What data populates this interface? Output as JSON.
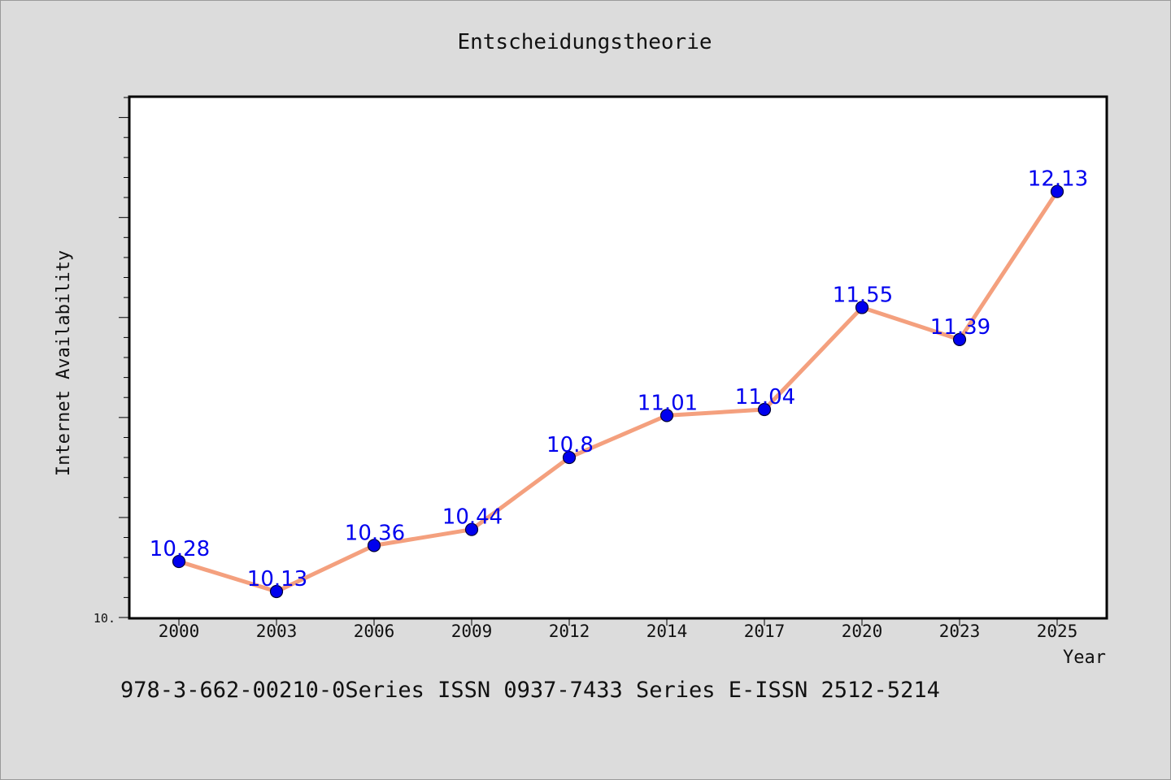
{
  "chart_data": {
    "type": "line",
    "title": "Entscheidungstheorie",
    "xlabel": "Year",
    "ylabel": "Internet Availability",
    "categories": [
      "2000",
      "2003",
      "2006",
      "2009",
      "2012",
      "2014",
      "2017",
      "2020",
      "2023",
      "2025"
    ],
    "series": [
      {
        "values": [
          10.28,
          10.13,
          10.36,
          10.44,
          10.8,
          11.01,
          11.04,
          11.55,
          11.39,
          12.13
        ],
        "data_labels": [
          "10.28",
          "10.13",
          "10.36",
          "10.44",
          "10.8",
          "11.01",
          "11.04",
          "11.55",
          "11.39",
          "12.13"
        ]
      }
    ],
    "y_tick_labels": [
      "10."
    ],
    "ylim": [
      10.0,
      12.6
    ],
    "grid": false,
    "legend": "none",
    "colors": {
      "line": "#f4a07e",
      "marker": "#0000ee",
      "marker_edge": "#000033",
      "data_label": "#0000ee",
      "background": "#dcdcdc",
      "plot_area": "#ffffff"
    }
  },
  "footer": {
    "text": "978-3-662-00210-0Series ISSN 0937-7433 Series E-ISSN 2512-5214"
  }
}
